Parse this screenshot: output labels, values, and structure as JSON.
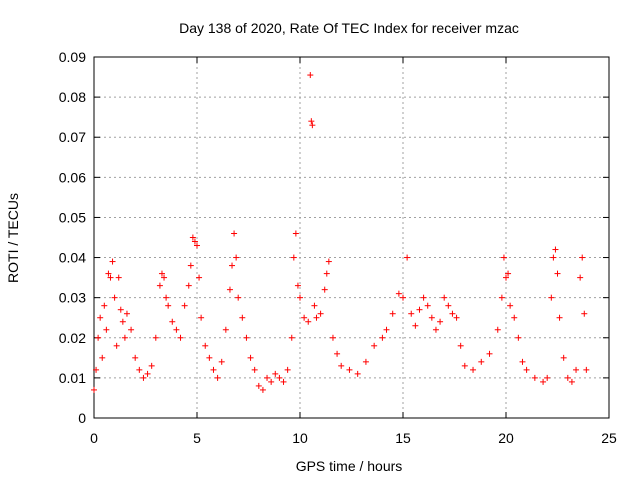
{
  "chart_data": {
    "type": "scatter",
    "title": "Day 138 of 2020, Rate Of TEC Index for receiver mzac",
    "xlabel": "GPS time / hours",
    "ylabel": "ROTI / TECUs",
    "xlim": [
      0,
      25
    ],
    "ylim": [
      0,
      0.09
    ],
    "x_ticks": [
      0,
      5,
      10,
      15,
      20,
      25
    ],
    "y_ticks": [
      0,
      0.01,
      0.02,
      0.03,
      0.04,
      0.05,
      0.06,
      0.07,
      0.08,
      0.09
    ],
    "x_tick_labels": [
      "0",
      "5",
      "10",
      "15",
      "20",
      "25"
    ],
    "y_tick_labels": [
      "0",
      "0.01",
      "0.02",
      "0.03",
      "0.04",
      "0.05",
      "0.06",
      "0.07",
      "0.08",
      "0.09"
    ],
    "grid": true,
    "marker": "+",
    "color": "#ff0000",
    "points": [
      [
        0.0,
        0.007
      ],
      [
        0.1,
        0.012
      ],
      [
        0.2,
        0.02
      ],
      [
        0.3,
        0.025
      ],
      [
        0.4,
        0.015
      ],
      [
        0.5,
        0.028
      ],
      [
        0.6,
        0.022
      ],
      [
        0.7,
        0.036
      ],
      [
        0.8,
        0.035
      ],
      [
        0.9,
        0.039
      ],
      [
        1.0,
        0.03
      ],
      [
        1.1,
        0.018
      ],
      [
        1.2,
        0.035
      ],
      [
        1.3,
        0.027
      ],
      [
        1.4,
        0.024
      ],
      [
        1.5,
        0.02
      ],
      [
        1.6,
        0.026
      ],
      [
        1.8,
        0.022
      ],
      [
        2.0,
        0.015
      ],
      [
        2.2,
        0.012
      ],
      [
        2.4,
        0.01
      ],
      [
        2.6,
        0.011
      ],
      [
        2.8,
        0.013
      ],
      [
        3.0,
        0.02
      ],
      [
        3.2,
        0.033
      ],
      [
        3.3,
        0.036
      ],
      [
        3.4,
        0.035
      ],
      [
        3.5,
        0.03
      ],
      [
        3.6,
        0.028
      ],
      [
        3.8,
        0.024
      ],
      [
        4.0,
        0.022
      ],
      [
        4.2,
        0.02
      ],
      [
        4.4,
        0.028
      ],
      [
        4.6,
        0.033
      ],
      [
        4.7,
        0.038
      ],
      [
        4.8,
        0.045
      ],
      [
        4.9,
        0.044
      ],
      [
        5.0,
        0.043
      ],
      [
        5.1,
        0.035
      ],
      [
        5.2,
        0.025
      ],
      [
        5.4,
        0.018
      ],
      [
        5.6,
        0.015
      ],
      [
        5.8,
        0.012
      ],
      [
        6.0,
        0.01
      ],
      [
        6.2,
        0.014
      ],
      [
        6.4,
        0.022
      ],
      [
        6.6,
        0.032
      ],
      [
        6.7,
        0.038
      ],
      [
        6.8,
        0.046
      ],
      [
        6.9,
        0.04
      ],
      [
        7.0,
        0.03
      ],
      [
        7.2,
        0.025
      ],
      [
        7.4,
        0.02
      ],
      [
        7.6,
        0.015
      ],
      [
        7.8,
        0.012
      ],
      [
        8.0,
        0.008
      ],
      [
        8.2,
        0.007
      ],
      [
        8.4,
        0.01
      ],
      [
        8.6,
        0.009
      ],
      [
        8.8,
        0.011
      ],
      [
        9.0,
        0.01
      ],
      [
        9.2,
        0.009
      ],
      [
        9.4,
        0.012
      ],
      [
        9.6,
        0.02
      ],
      [
        9.7,
        0.04
      ],
      [
        9.8,
        0.046
      ],
      [
        9.9,
        0.033
      ],
      [
        10.0,
        0.03
      ],
      [
        10.2,
        0.025
      ],
      [
        10.4,
        0.024
      ],
      [
        10.5,
        0.0855
      ],
      [
        10.55,
        0.074
      ],
      [
        10.6,
        0.073
      ],
      [
        10.7,
        0.028
      ],
      [
        10.8,
        0.025
      ],
      [
        11.0,
        0.026
      ],
      [
        11.2,
        0.032
      ],
      [
        11.3,
        0.036
      ],
      [
        11.4,
        0.039
      ],
      [
        11.6,
        0.02
      ],
      [
        11.8,
        0.016
      ],
      [
        12.0,
        0.013
      ],
      [
        12.4,
        0.012
      ],
      [
        12.8,
        0.011
      ],
      [
        13.2,
        0.014
      ],
      [
        13.6,
        0.018
      ],
      [
        14.0,
        0.02
      ],
      [
        14.2,
        0.022
      ],
      [
        14.5,
        0.026
      ],
      [
        14.8,
        0.031
      ],
      [
        15.0,
        0.03
      ],
      [
        15.2,
        0.04
      ],
      [
        15.4,
        0.026
      ],
      [
        15.6,
        0.023
      ],
      [
        15.8,
        0.027
      ],
      [
        16.0,
        0.03
      ],
      [
        16.2,
        0.028
      ],
      [
        16.4,
        0.025
      ],
      [
        16.6,
        0.022
      ],
      [
        16.8,
        0.024
      ],
      [
        17.0,
        0.03
      ],
      [
        17.2,
        0.028
      ],
      [
        17.4,
        0.026
      ],
      [
        17.6,
        0.025
      ],
      [
        17.8,
        0.018
      ],
      [
        18.0,
        0.013
      ],
      [
        18.4,
        0.012
      ],
      [
        18.8,
        0.014
      ],
      [
        19.2,
        0.016
      ],
      [
        19.6,
        0.022
      ],
      [
        19.8,
        0.03
      ],
      [
        19.9,
        0.04
      ],
      [
        20.0,
        0.035
      ],
      [
        20.1,
        0.036
      ],
      [
        20.2,
        0.028
      ],
      [
        20.4,
        0.025
      ],
      [
        20.6,
        0.02
      ],
      [
        20.8,
        0.014
      ],
      [
        21.0,
        0.012
      ],
      [
        21.4,
        0.01
      ],
      [
        21.8,
        0.009
      ],
      [
        22.0,
        0.01
      ],
      [
        22.2,
        0.03
      ],
      [
        22.3,
        0.04
      ],
      [
        22.4,
        0.042
      ],
      [
        22.5,
        0.036
      ],
      [
        22.6,
        0.025
      ],
      [
        22.8,
        0.015
      ],
      [
        23.0,
        0.01
      ],
      [
        23.2,
        0.009
      ],
      [
        23.4,
        0.012
      ],
      [
        23.6,
        0.035
      ],
      [
        23.7,
        0.04
      ],
      [
        23.8,
        0.026
      ],
      [
        23.9,
        0.012
      ]
    ]
  }
}
